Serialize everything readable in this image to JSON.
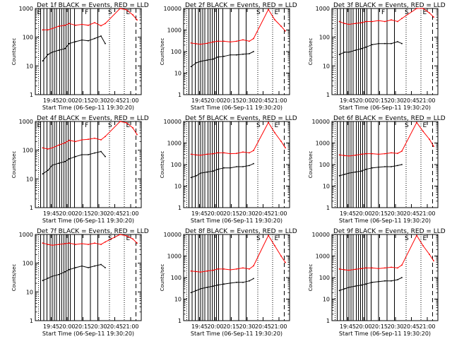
{
  "figure": {
    "xlabel": "Start Time (06-Sep-11 19:30:20)",
    "ylabel": "Counts/sec",
    "x_ticks": [
      "19:45",
      "20:00",
      "20:15",
      "20:30",
      "20:45",
      "21:00"
    ],
    "colors": {
      "events": "#000000",
      "lld": "#ff0000",
      "axes": "#000000"
    }
  },
  "chart_data": [
    {
      "type": "line",
      "title": "Det 1f BLACK = Events, RED = LLD",
      "xlabel": "Start Time (06-Sep-11 19:30:20)",
      "ylabel": "Counts/sec",
      "xlim": [
        "19:30",
        "21:10"
      ],
      "ylim": [
        1,
        1000
      ],
      "yscale": "log",
      "y_ticks": [
        "1",
        "10",
        "100",
        "1000"
      ],
      "segment_labels": [
        "E",
        "F",
        "S",
        "E"
      ],
      "series": [
        {
          "name": "Events",
          "color": "#000000",
          "x": [
            "19:37",
            "19:42",
            "19:46",
            "19:52",
            "19:58",
            "20:02",
            "20:08",
            "20:14",
            "20:20",
            "20:26",
            "20:32",
            "20:36"
          ],
          "y": [
            15,
            25,
            30,
            35,
            40,
            60,
            70,
            80,
            75,
            90,
            110,
            60
          ]
        },
        {
          "name": "LLD",
          "color": "#ff0000",
          "x": [
            "19:37",
            "19:42",
            "19:46",
            "19:52",
            "19:58",
            "20:02",
            "20:08",
            "20:14",
            "20:20",
            "20:26",
            "20:32",
            "20:36",
            "20:50",
            "20:56",
            "21:02",
            "21:06"
          ],
          "y": [
            180,
            180,
            200,
            240,
            260,
            300,
            260,
            280,
            260,
            320,
            250,
            300,
            1000,
            900,
            600,
            400
          ]
        }
      ]
    },
    {
      "type": "line",
      "title": "Det 2f BLACK = Events, RED = LLD",
      "xlabel": "Start Time (06-Sep-11 19:30:20)",
      "ylabel": "Counts/sec",
      "xlim": [
        "19:30",
        "21:10"
      ],
      "ylim": [
        1,
        10000
      ],
      "yscale": "log",
      "y_ticks": [
        "1",
        "10",
        "100",
        "1000",
        "10000"
      ],
      "segment_labels": [
        "S",
        "E"
      ],
      "series": [
        {
          "name": "Events",
          "color": "#000000",
          "x": [
            "19:37",
            "19:42",
            "19:46",
            "19:52",
            "19:58",
            "20:02",
            "20:08",
            "20:14",
            "20:20",
            "20:26",
            "20:32",
            "20:36"
          ],
          "y": [
            20,
            30,
            35,
            40,
            45,
            55,
            60,
            70,
            70,
            75,
            80,
            100
          ]
        },
        {
          "name": "LLD",
          "color": "#ff0000",
          "x": [
            "19:37",
            "19:42",
            "19:46",
            "19:52",
            "19:58",
            "20:02",
            "20:08",
            "20:14",
            "20:20",
            "20:26",
            "20:32",
            "20:36",
            "20:50",
            "20:56",
            "21:02",
            "21:06"
          ],
          "y": [
            250,
            230,
            220,
            240,
            280,
            300,
            300,
            280,
            300,
            350,
            300,
            400,
            9000,
            3000,
            1500,
            900
          ]
        }
      ]
    },
    {
      "type": "line",
      "title": "Det 3f BLACK = Events, RED = LLD",
      "xlabel": "Start Time (06-Sep-11 19:30:20)",
      "ylabel": "Counts/sec",
      "xlim": [
        "19:30",
        "21:10"
      ],
      "ylim": [
        1,
        1000
      ],
      "yscale": "log",
      "y_ticks": [
        "1",
        "10",
        "100",
        "1000"
      ],
      "segment_labels": [
        "F",
        "S",
        "E"
      ],
      "series": [
        {
          "name": "Events",
          "color": "#000000",
          "x": [
            "19:37",
            "19:42",
            "19:46",
            "19:52",
            "19:58",
            "20:02",
            "20:08",
            "20:14",
            "20:20",
            "20:26",
            "20:32",
            "20:36"
          ],
          "y": [
            25,
            30,
            30,
            35,
            40,
            45,
            55,
            60,
            60,
            60,
            70,
            60
          ]
        },
        {
          "name": "LLD",
          "color": "#ff0000",
          "x": [
            "19:37",
            "19:42",
            "19:46",
            "19:52",
            "19:58",
            "20:02",
            "20:08",
            "20:14",
            "20:20",
            "20:26",
            "20:32",
            "20:36",
            "20:50",
            "20:56",
            "21:02",
            "21:06"
          ],
          "y": [
            350,
            300,
            280,
            300,
            320,
            350,
            350,
            380,
            350,
            400,
            350,
            450,
            1000,
            1000,
            700,
            500
          ]
        }
      ]
    },
    {
      "type": "line",
      "title": "Det 4f BLACK = Events, RED = LLD",
      "xlabel": "Start Time (06-Sep-11 19:30:20)",
      "ylabel": "Counts/sec",
      "xlim": [
        "19:30",
        "21:10"
      ],
      "ylim": [
        1,
        1000
      ],
      "yscale": "log",
      "y_ticks": [
        "1",
        "10",
        "100",
        "1000"
      ],
      "segment_labels": [
        "E",
        "F",
        "S",
        "E"
      ],
      "series": [
        {
          "name": "Events",
          "color": "#000000",
          "x": [
            "19:37",
            "19:42",
            "19:46",
            "19:52",
            "19:58",
            "20:02",
            "20:08",
            "20:14",
            "20:20",
            "20:26",
            "20:32",
            "20:36"
          ],
          "y": [
            15,
            20,
            30,
            35,
            40,
            50,
            60,
            70,
            70,
            80,
            90,
            60
          ]
        },
        {
          "name": "LLD",
          "color": "#ff0000",
          "x": [
            "19:37",
            "19:42",
            "19:46",
            "19:52",
            "19:58",
            "20:02",
            "20:08",
            "20:14",
            "20:20",
            "20:26",
            "20:32",
            "20:36",
            "20:50",
            "20:56",
            "21:02",
            "21:06"
          ],
          "y": [
            120,
            110,
            120,
            150,
            180,
            220,
            200,
            230,
            240,
            260,
            230,
            300,
            1000,
            900,
            600,
            350
          ]
        }
      ]
    },
    {
      "type": "line",
      "title": "Det 5f BLACK = Events, RED = LLD",
      "xlabel": "Start Time (06-Sep-11 19:30:20)",
      "ylabel": "Counts/sec",
      "xlim": [
        "19:30",
        "21:10"
      ],
      "ylim": [
        1,
        10000
      ],
      "yscale": "log",
      "y_ticks": [
        "1",
        "10",
        "100",
        "1000",
        "10000"
      ],
      "segment_labels": [
        "S",
        "E"
      ],
      "series": [
        {
          "name": "Events",
          "color": "#000000",
          "x": [
            "19:37",
            "19:42",
            "19:46",
            "19:52",
            "19:58",
            "20:02",
            "20:08",
            "20:14",
            "20:20",
            "20:26",
            "20:32",
            "20:36"
          ],
          "y": [
            25,
            30,
            40,
            45,
            50,
            60,
            70,
            70,
            80,
            80,
            90,
            110
          ]
        },
        {
          "name": "LLD",
          "color": "#ff0000",
          "x": [
            "19:37",
            "19:42",
            "19:46",
            "19:52",
            "19:58",
            "20:02",
            "20:08",
            "20:14",
            "20:20",
            "20:26",
            "20:32",
            "20:36",
            "20:50",
            "20:56",
            "21:02",
            "21:06"
          ],
          "y": [
            300,
            280,
            270,
            300,
            320,
            350,
            350,
            320,
            330,
            380,
            350,
            450,
            9000,
            3000,
            1200,
            600
          ]
        }
      ]
    },
    {
      "type": "line",
      "title": "Det 6f BLACK = Events, RED = LLD",
      "xlabel": "Start Time (06-Sep-11 19:30:20)",
      "ylabel": "Counts/sec",
      "xlim": [
        "19:30",
        "21:10"
      ],
      "ylim": [
        1,
        10000
      ],
      "yscale": "log",
      "y_ticks": [
        "1",
        "10",
        "100",
        "1000",
        "10000"
      ],
      "segment_labels": [
        "S",
        "E"
      ],
      "series": [
        {
          "name": "Events",
          "color": "#000000",
          "x": [
            "19:37",
            "19:42",
            "19:46",
            "19:52",
            "19:58",
            "20:02",
            "20:08",
            "20:14",
            "20:20",
            "20:26",
            "20:32",
            "20:36"
          ],
          "y": [
            30,
            35,
            40,
            45,
            50,
            60,
            70,
            75,
            80,
            80,
            90,
            100
          ]
        },
        {
          "name": "LLD",
          "color": "#ff0000",
          "x": [
            "19:37",
            "19:42",
            "19:46",
            "19:52",
            "19:58",
            "20:02",
            "20:08",
            "20:14",
            "20:20",
            "20:26",
            "20:32",
            "20:36",
            "20:50",
            "20:56",
            "21:02",
            "21:06"
          ],
          "y": [
            280,
            260,
            250,
            270,
            300,
            320,
            320,
            300,
            320,
            350,
            330,
            420,
            9000,
            3500,
            1500,
            700
          ]
        }
      ]
    },
    {
      "type": "line",
      "title": "Det 7f BLACK = Events, RED = LLD",
      "xlabel": "Start Time (06-Sep-11 19:30:20)",
      "ylabel": "Counts/sec",
      "xlim": [
        "19:30",
        "21:10"
      ],
      "ylim": [
        1,
        1000
      ],
      "yscale": "log",
      "y_ticks": [
        "1",
        "10",
        "100",
        "1000"
      ],
      "segment_labels": [
        "S",
        "E"
      ],
      "series": [
        {
          "name": "Events",
          "color": "#000000",
          "x": [
            "19:37",
            "19:42",
            "19:46",
            "19:52",
            "19:58",
            "20:02",
            "20:08",
            "20:14",
            "20:20",
            "20:26",
            "20:32",
            "20:36"
          ],
          "y": [
            25,
            30,
            35,
            40,
            50,
            60,
            70,
            80,
            70,
            80,
            90,
            70
          ]
        },
        {
          "name": "LLD",
          "color": "#ff0000",
          "x": [
            "19:37",
            "19:42",
            "19:46",
            "19:52",
            "19:58",
            "20:02",
            "20:08",
            "20:14",
            "20:20",
            "20:26",
            "20:32",
            "20:36",
            "20:50",
            "20:56",
            "21:02",
            "21:06"
          ],
          "y": [
            500,
            450,
            420,
            450,
            480,
            500,
            450,
            480,
            450,
            500,
            450,
            550,
            1000,
            900,
            700,
            500
          ]
        }
      ]
    },
    {
      "type": "line",
      "title": "Det 8f BLACK = Events, RED = LLD",
      "xlabel": "Start Time (06-Sep-11 19:30:20)",
      "ylabel": "Counts/sec",
      "xlim": [
        "19:30",
        "21:10"
      ],
      "ylim": [
        1,
        10000
      ],
      "yscale": "log",
      "y_ticks": [
        "1",
        "10",
        "100",
        "1000",
        "10000"
      ],
      "segment_labels": [
        "S",
        "E"
      ],
      "series": [
        {
          "name": "Events",
          "color": "#000000",
          "x": [
            "19:37",
            "19:42",
            "19:46",
            "19:52",
            "19:58",
            "20:02",
            "20:08",
            "20:14",
            "20:20",
            "20:26",
            "20:32",
            "20:36"
          ],
          "y": [
            20,
            25,
            30,
            35,
            40,
            45,
            50,
            55,
            60,
            60,
            70,
            90
          ]
        },
        {
          "name": "LLD",
          "color": "#ff0000",
          "x": [
            "19:37",
            "19:42",
            "19:46",
            "19:52",
            "19:58",
            "20:02",
            "20:08",
            "20:14",
            "20:20",
            "20:26",
            "20:32",
            "20:36",
            "20:50",
            "20:56",
            "21:02",
            "21:06"
          ],
          "y": [
            200,
            190,
            180,
            200,
            220,
            250,
            250,
            230,
            250,
            280,
            250,
            350,
            9000,
            3000,
            1000,
            500
          ]
        }
      ]
    },
    {
      "type": "line",
      "title": "Det 9f BLACK = Events, RED = LLD",
      "xlabel": "Start Time (06-Sep-11 19:30:20)",
      "ylabel": "Counts/sec",
      "xlim": [
        "19:30",
        "21:10"
      ],
      "ylim": [
        1,
        10000
      ],
      "yscale": "log",
      "y_ticks": [
        "1",
        "10",
        "100",
        "1000",
        "10000"
      ],
      "segment_labels": [
        "S",
        "E"
      ],
      "series": [
        {
          "name": "Events",
          "color": "#000000",
          "x": [
            "19:37",
            "19:42",
            "19:46",
            "19:52",
            "19:58",
            "20:02",
            "20:08",
            "20:14",
            "20:20",
            "20:26",
            "20:32",
            "20:36"
          ],
          "y": [
            25,
            30,
            35,
            40,
            45,
            50,
            60,
            65,
            70,
            70,
            80,
            100
          ]
        },
        {
          "name": "LLD",
          "color": "#ff0000",
          "x": [
            "19:37",
            "19:42",
            "19:46",
            "19:52",
            "19:58",
            "20:02",
            "20:08",
            "20:14",
            "20:20",
            "20:26",
            "20:32",
            "20:36",
            "20:50",
            "20:56",
            "21:02",
            "21:06"
          ],
          "y": [
            250,
            230,
            220,
            240,
            260,
            280,
            280,
            260,
            280,
            300,
            280,
            380,
            9000,
            3000,
            1200,
            600
          ]
        }
      ]
    }
  ]
}
